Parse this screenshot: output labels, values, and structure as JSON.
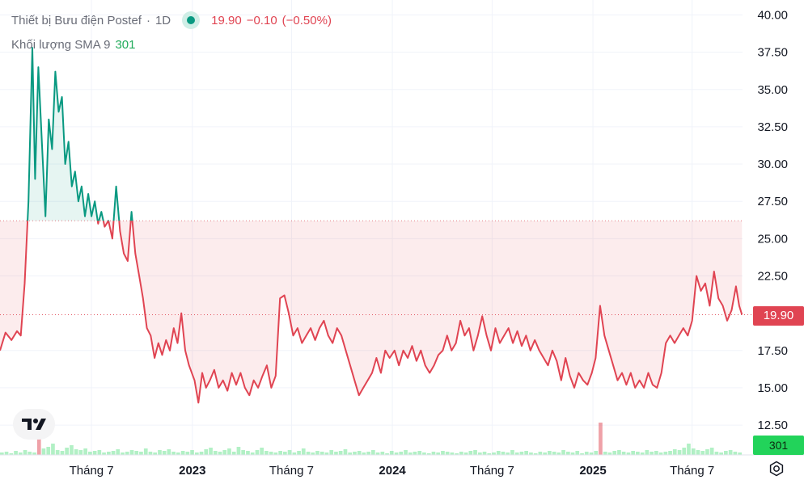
{
  "header": {
    "symbol_name": "Thiết bị Bưu điện Postef",
    "interval": "1D",
    "last_price": "19.90",
    "change": "−0.10",
    "change_pct": "(−0.50%)",
    "separator": "·"
  },
  "volume_legend": {
    "label": "Khối lượng SMA 9",
    "value": "301"
  },
  "price_tag": "19.90",
  "volume_tag": "301",
  "colors": {
    "up": "#089981",
    "down": "#e04452",
    "volume_up": "#22d35a",
    "baseline_fill_above": "#089981",
    "baseline_fill_below": "#e04452"
  },
  "icons": {
    "logo": "tradingview-logo-icon",
    "settings": "gear-icon",
    "status": "market-status-dot-icon"
  },
  "chart_data": {
    "type": "area",
    "chart_style": "baseline",
    "baseline_value": 26.2,
    "ylim": [
      10.5,
      41.0
    ],
    "y_ticks": [
      "40.00",
      "37.50",
      "35.00",
      "32.50",
      "30.00",
      "27.50",
      "25.00",
      "22.50",
      "17.50",
      "15.00",
      "12.50"
    ],
    "x_ticks": [
      {
        "label": "Tháng 7",
        "date": "2022-07-01",
        "bold": false
      },
      {
        "label": "2023",
        "date": "2023-01-01",
        "bold": true
      },
      {
        "label": "Tháng 7",
        "date": "2023-07-01",
        "bold": false
      },
      {
        "label": "2024",
        "date": "2024-01-01",
        "bold": true
      },
      {
        "label": "Tháng 7",
        "date": "2024-07-01",
        "bold": false
      },
      {
        "label": "2025",
        "date": "2025-01-01",
        "bold": true
      },
      {
        "label": "Tháng 7",
        "date": "2025-07-01",
        "bold": false
      }
    ],
    "xlim": [
      "2022-01-15",
      "2025-10-01"
    ],
    "series": [
      {
        "values": [
          [
            "2022-01-15",
            17.5
          ],
          [
            "2022-01-25",
            18.7
          ],
          [
            "2022-02-05",
            18.2
          ],
          [
            "2022-02-15",
            18.8
          ],
          [
            "2022-02-22",
            18.5
          ],
          [
            "2022-03-01",
            22.0
          ],
          [
            "2022-03-08",
            27.5
          ],
          [
            "2022-03-15",
            37.8
          ],
          [
            "2022-03-20",
            29.0
          ],
          [
            "2022-03-26",
            36.5
          ],
          [
            "2022-04-02",
            31.0
          ],
          [
            "2022-04-08",
            26.5
          ],
          [
            "2022-04-14",
            33.0
          ],
          [
            "2022-04-20",
            31.0
          ],
          [
            "2022-04-26",
            36.2
          ],
          [
            "2022-05-02",
            33.5
          ],
          [
            "2022-05-08",
            34.5
          ],
          [
            "2022-05-14",
            30.0
          ],
          [
            "2022-05-20",
            31.5
          ],
          [
            "2022-05-26",
            28.5
          ],
          [
            "2022-06-01",
            29.5
          ],
          [
            "2022-06-07",
            27.5
          ],
          [
            "2022-06-13",
            28.5
          ],
          [
            "2022-06-19",
            26.5
          ],
          [
            "2022-06-25",
            28.0
          ],
          [
            "2022-07-01",
            26.5
          ],
          [
            "2022-07-07",
            27.5
          ],
          [
            "2022-07-13",
            26.0
          ],
          [
            "2022-07-19",
            26.8
          ],
          [
            "2022-07-25",
            25.8
          ],
          [
            "2022-08-01",
            26.2
          ],
          [
            "2022-08-08",
            25.0
          ],
          [
            "2022-08-15",
            28.5
          ],
          [
            "2022-08-22",
            25.5
          ],
          [
            "2022-08-29",
            24.0
          ],
          [
            "2022-09-05",
            23.5
          ],
          [
            "2022-09-12",
            26.8
          ],
          [
            "2022-09-19",
            24.0
          ],
          [
            "2022-09-26",
            22.5
          ],
          [
            "2022-10-03",
            21.0
          ],
          [
            "2022-10-10",
            19.0
          ],
          [
            "2022-10-17",
            18.5
          ],
          [
            "2022-10-24",
            17.0
          ],
          [
            "2022-10-31",
            18.0
          ],
          [
            "2022-11-07",
            17.2
          ],
          [
            "2022-11-14",
            18.2
          ],
          [
            "2022-11-21",
            17.5
          ],
          [
            "2022-11-28",
            19.0
          ],
          [
            "2022-12-05",
            18.0
          ],
          [
            "2022-12-12",
            20.0
          ],
          [
            "2022-12-19",
            17.5
          ],
          [
            "2022-12-26",
            16.5
          ],
          [
            "2023-01-05",
            15.5
          ],
          [
            "2023-01-12",
            14.0
          ],
          [
            "2023-01-19",
            16.0
          ],
          [
            "2023-01-26",
            15.0
          ],
          [
            "2023-02-02",
            15.5
          ],
          [
            "2023-02-10",
            16.2
          ],
          [
            "2023-02-18",
            15.0
          ],
          [
            "2023-02-26",
            15.5
          ],
          [
            "2023-03-06",
            14.8
          ],
          [
            "2023-03-14",
            16.0
          ],
          [
            "2023-03-22",
            15.2
          ],
          [
            "2023-03-30",
            16.0
          ],
          [
            "2023-04-07",
            15.0
          ],
          [
            "2023-04-15",
            14.5
          ],
          [
            "2023-04-23",
            15.5
          ],
          [
            "2023-05-01",
            15.0
          ],
          [
            "2023-05-09",
            15.8
          ],
          [
            "2023-05-17",
            16.5
          ],
          [
            "2023-05-25",
            15.0
          ],
          [
            "2023-06-02",
            15.8
          ],
          [
            "2023-06-10",
            21.0
          ],
          [
            "2023-06-18",
            21.2
          ],
          [
            "2023-06-26",
            20.0
          ],
          [
            "2023-07-04",
            18.5
          ],
          [
            "2023-07-12",
            19.0
          ],
          [
            "2023-07-20",
            18.0
          ],
          [
            "2023-07-28",
            18.5
          ],
          [
            "2023-08-05",
            19.0
          ],
          [
            "2023-08-13",
            18.2
          ],
          [
            "2023-08-21",
            19.0
          ],
          [
            "2023-08-29",
            19.5
          ],
          [
            "2023-09-06",
            18.5
          ],
          [
            "2023-09-14",
            18.0
          ],
          [
            "2023-09-22",
            19.0
          ],
          [
            "2023-09-30",
            18.5
          ],
          [
            "2023-10-08",
            17.5
          ],
          [
            "2023-10-16",
            16.5
          ],
          [
            "2023-10-24",
            15.5
          ],
          [
            "2023-11-01",
            14.5
          ],
          [
            "2023-11-09",
            15.0
          ],
          [
            "2023-11-17",
            15.5
          ],
          [
            "2023-11-25",
            16.0
          ],
          [
            "2023-12-03",
            17.0
          ],
          [
            "2023-12-11",
            16.0
          ],
          [
            "2023-12-19",
            17.5
          ],
          [
            "2023-12-27",
            17.0
          ],
          [
            "2024-01-05",
            17.5
          ],
          [
            "2024-01-13",
            16.5
          ],
          [
            "2024-01-21",
            17.5
          ],
          [
            "2024-01-29",
            17.0
          ],
          [
            "2024-02-06",
            17.8
          ],
          [
            "2024-02-14",
            16.8
          ],
          [
            "2024-02-22",
            17.5
          ],
          [
            "2024-03-01",
            16.5
          ],
          [
            "2024-03-09",
            16.0
          ],
          [
            "2024-03-17",
            16.5
          ],
          [
            "2024-03-25",
            17.2
          ],
          [
            "2024-04-02",
            17.5
          ],
          [
            "2024-04-10",
            18.5
          ],
          [
            "2024-04-18",
            17.5
          ],
          [
            "2024-04-26",
            18.0
          ],
          [
            "2024-05-04",
            19.5
          ],
          [
            "2024-05-12",
            18.5
          ],
          [
            "2024-05-20",
            19.0
          ],
          [
            "2024-05-28",
            17.5
          ],
          [
            "2024-06-05",
            18.5
          ],
          [
            "2024-06-13",
            19.8
          ],
          [
            "2024-06-21",
            18.5
          ],
          [
            "2024-06-29",
            17.5
          ],
          [
            "2024-07-07",
            19.0
          ],
          [
            "2024-07-15",
            18.0
          ],
          [
            "2024-07-23",
            18.5
          ],
          [
            "2024-07-31",
            19.0
          ],
          [
            "2024-08-08",
            18.0
          ],
          [
            "2024-08-16",
            18.8
          ],
          [
            "2024-08-24",
            17.8
          ],
          [
            "2024-09-01",
            18.5
          ],
          [
            "2024-09-09",
            17.5
          ],
          [
            "2024-09-17",
            18.2
          ],
          [
            "2024-09-25",
            17.5
          ],
          [
            "2024-10-03",
            17.0
          ],
          [
            "2024-10-11",
            16.5
          ],
          [
            "2024-10-19",
            17.5
          ],
          [
            "2024-10-27",
            16.8
          ],
          [
            "2024-11-04",
            15.5
          ],
          [
            "2024-11-12",
            17.0
          ],
          [
            "2024-11-20",
            15.8
          ],
          [
            "2024-11-28",
            15.0
          ],
          [
            "2024-12-06",
            16.0
          ],
          [
            "2024-12-14",
            15.5
          ],
          [
            "2024-12-22",
            15.2
          ],
          [
            "2024-12-30",
            16.0
          ],
          [
            "2025-01-06",
            17.0
          ],
          [
            "2025-01-14",
            20.5
          ],
          [
            "2025-01-22",
            18.5
          ],
          [
            "2025-01-30",
            17.5
          ],
          [
            "2025-02-07",
            16.5
          ],
          [
            "2025-02-15",
            15.5
          ],
          [
            "2025-02-23",
            16.0
          ],
          [
            "2025-03-03",
            15.2
          ],
          [
            "2025-03-11",
            16.0
          ],
          [
            "2025-03-19",
            15.0
          ],
          [
            "2025-03-27",
            15.5
          ],
          [
            "2025-04-04",
            15.0
          ],
          [
            "2025-04-12",
            16.0
          ],
          [
            "2025-04-20",
            15.2
          ],
          [
            "2025-04-28",
            15.0
          ],
          [
            "2025-05-06",
            16.0
          ],
          [
            "2025-05-14",
            18.0
          ],
          [
            "2025-05-22",
            18.5
          ],
          [
            "2025-05-30",
            18.0
          ],
          [
            "2025-06-07",
            18.5
          ],
          [
            "2025-06-15",
            19.0
          ],
          [
            "2025-06-23",
            18.5
          ],
          [
            "2025-07-01",
            19.5
          ],
          [
            "2025-07-09",
            22.5
          ],
          [
            "2025-07-17",
            21.5
          ],
          [
            "2025-07-25",
            22.0
          ],
          [
            "2025-08-02",
            20.5
          ],
          [
            "2025-08-10",
            22.8
          ],
          [
            "2025-08-18",
            21.0
          ],
          [
            "2025-08-26",
            20.5
          ],
          [
            "2025-09-03",
            19.5
          ],
          [
            "2025-09-11",
            20.2
          ],
          [
            "2025-09-19",
            21.8
          ],
          [
            "2025-09-25",
            20.5
          ],
          [
            "2025-09-30",
            19.9
          ]
        ]
      }
    ],
    "volume": {
      "values": [
        3,
        4,
        2,
        5,
        3,
        6,
        4,
        3,
        50,
        8,
        10,
        14,
        6,
        5,
        9,
        12,
        7,
        6,
        8,
        4,
        5,
        6,
        3,
        4,
        5,
        7,
        3,
        4,
        6,
        5,
        4,
        8,
        4,
        3,
        6,
        5,
        7,
        4,
        3,
        5,
        4,
        6,
        3,
        4,
        7,
        9,
        5,
        4,
        6,
        8,
        4,
        10,
        6,
        5,
        3,
        6,
        9,
        5,
        4,
        3,
        5,
        4,
        6,
        3,
        5,
        8,
        4,
        3,
        5,
        4,
        3,
        6,
        4,
        5,
        7,
        3,
        4,
        5,
        3,
        4,
        6,
        3,
        4,
        2,
        5,
        3,
        4,
        6,
        3,
        4,
        5,
        3,
        2,
        4,
        3,
        5,
        4,
        3,
        2,
        4,
        3,
        5,
        6,
        3,
        4,
        2,
        3,
        5,
        4,
        3,
        6,
        3,
        4,
        5,
        3,
        2,
        4,
        3,
        5,
        4,
        3,
        6,
        4,
        3,
        5,
        2,
        4,
        3,
        5,
        40,
        4,
        3,
        5,
        6,
        4,
        3,
        5,
        4,
        3,
        6,
        4,
        5,
        3,
        4,
        5,
        7,
        6,
        9,
        14,
        8,
        6,
        5,
        7,
        9,
        4,
        3,
        5,
        6,
        4,
        3
      ]
    }
  }
}
